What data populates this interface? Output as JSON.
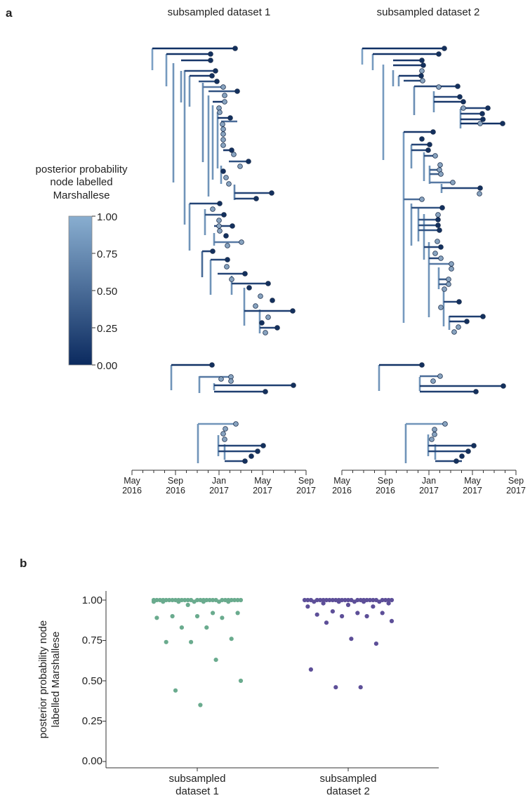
{
  "panels": {
    "a": {
      "label": "a"
    },
    "b": {
      "label": "b"
    }
  },
  "colors": {
    "low": "#0b2a5f",
    "high": "#89aed0",
    "tip": "#13305e",
    "dataset1": "#6aab8e",
    "dataset2": "#5d4f98",
    "axis": "#333333"
  },
  "chart_data": [
    {
      "type": "tree",
      "panel": "a",
      "description_title": "subsampled time-scaled phylogenies",
      "trees": [
        {
          "title": "subsampled dataset 1"
        },
        {
          "title": "subsampled dataset 2"
        }
      ],
      "x_axis": {
        "ticks": [
          {
            "line1": "May",
            "line2": "2016"
          },
          {
            "line1": "Sep",
            "line2": "2016"
          },
          {
            "line1": "Jan",
            "line2": "2017"
          },
          {
            "line1": "May",
            "line2": "2017"
          },
          {
            "line1": "Sep",
            "line2": "2017"
          }
        ]
      },
      "legend": {
        "title_lines": [
          "posterior probability",
          "node labelled",
          "Marshallese"
        ],
        "tick_labels": [
          "1.00",
          "0.75",
          "0.50",
          "0.25",
          "0.00"
        ],
        "range": [
          0,
          1
        ]
      }
    },
    {
      "type": "scatter",
      "panel": "b",
      "ylabel_lines": [
        "posterior probability node",
        "labelled Marshallese"
      ],
      "ylim": [
        0,
        1
      ],
      "y_ticks": [
        "0.00",
        "0.25",
        "0.50",
        "0.75",
        "1.00"
      ],
      "categories": [
        {
          "line1": "subsampled",
          "line2": "dataset 1"
        },
        {
          "line1": "subsampled",
          "line2": "dataset 2"
        }
      ],
      "series": [
        {
          "name": "subsampled dataset 1",
          "values": [
            1.0,
            1.0,
            1.0,
            1.0,
            1.0,
            1.0,
            1.0,
            1.0,
            1.0,
            1.0,
            1.0,
            1.0,
            1.0,
            1.0,
            1.0,
            1.0,
            1.0,
            1.0,
            1.0,
            1.0,
            1.0,
            1.0,
            1.0,
            1.0,
            1.0,
            1.0,
            1.0,
            0.99,
            0.99,
            0.99,
            0.99,
            0.99,
            0.99,
            0.99,
            0.97,
            0.92,
            0.92,
            0.9,
            0.9,
            0.89,
            0.89,
            0.83,
            0.83,
            0.76,
            0.74,
            0.74,
            0.63,
            0.5,
            0.44,
            0.35
          ]
        },
        {
          "name": "subsampled dataset 2",
          "values": [
            1.0,
            1.0,
            1.0,
            1.0,
            1.0,
            1.0,
            1.0,
            1.0,
            1.0,
            1.0,
            1.0,
            1.0,
            1.0,
            1.0,
            1.0,
            1.0,
            1.0,
            1.0,
            1.0,
            1.0,
            1.0,
            1.0,
            1.0,
            1.0,
            1.0,
            1.0,
            0.99,
            0.99,
            0.99,
            0.99,
            0.99,
            0.98,
            0.98,
            0.97,
            0.96,
            0.96,
            0.93,
            0.92,
            0.92,
            0.91,
            0.9,
            0.9,
            0.87,
            0.86,
            0.76,
            0.73,
            0.57,
            0.46,
            0.46
          ]
        }
      ]
    }
  ]
}
